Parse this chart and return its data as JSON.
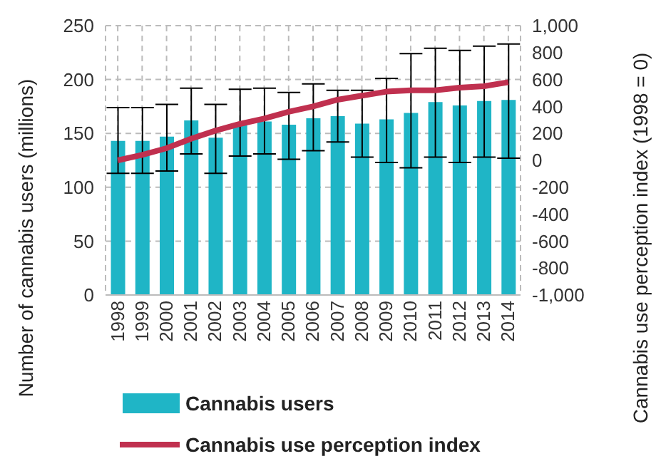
{
  "chart_data": {
    "type": "bar",
    "categories": [
      "1998",
      "1999",
      "2000",
      "2001",
      "2002",
      "2003",
      "2004",
      "2005",
      "2006",
      "2007",
      "2008",
      "2009",
      "2010",
      "2011",
      "2012",
      "2013",
      "2014"
    ],
    "ylabel": "Number of cannabis users (millions)",
    "y2label": "Cannabis use perception index (1998 = 0)",
    "series": [
      {
        "name": "Cannabis users",
        "color": "#1fb5c6",
        "values": [
          143,
          143,
          147,
          162,
          146,
          159,
          161,
          158,
          164,
          166,
          159,
          163,
          169,
          179,
          176,
          180,
          181
        ],
        "errors": [
          [
            113,
            174
          ],
          [
            113,
            174
          ],
          [
            115,
            177
          ],
          [
            131,
            192
          ],
          [
            113,
            177
          ],
          [
            129,
            191
          ],
          [
            131,
            192
          ],
          [
            126,
            188
          ],
          [
            134,
            196
          ],
          [
            142,
            190
          ],
          [
            128,
            190
          ],
          [
            123,
            201
          ],
          [
            118,
            224
          ],
          [
            128,
            229
          ],
          [
            123,
            227
          ],
          [
            128,
            231
          ],
          [
            127,
            233
          ]
        ]
      },
      {
        "name": "Cannabis use perception index",
        "type": "line",
        "axis": "y2",
        "color": "#c0304f",
        "values": [
          0,
          40,
          90,
          160,
          220,
          270,
          310,
          360,
          400,
          450,
          480,
          510,
          520,
          520,
          540,
          550,
          580
        ]
      }
    ],
    "ylim": [
      0,
      250
    ],
    "yticks": [
      0,
      50,
      100,
      150,
      200,
      250
    ],
    "y2lim": [
      -1000,
      1000
    ],
    "y2ticks": [
      {
        "value": -1000,
        "label": "-1,000"
      },
      -800,
      -600,
      -400,
      -200,
      0,
      200,
      400,
      600,
      800,
      {
        "value": 1000,
        "label": "1,000"
      }
    ],
    "grid": true,
    "legend": "bottom",
    "marker": "none"
  }
}
